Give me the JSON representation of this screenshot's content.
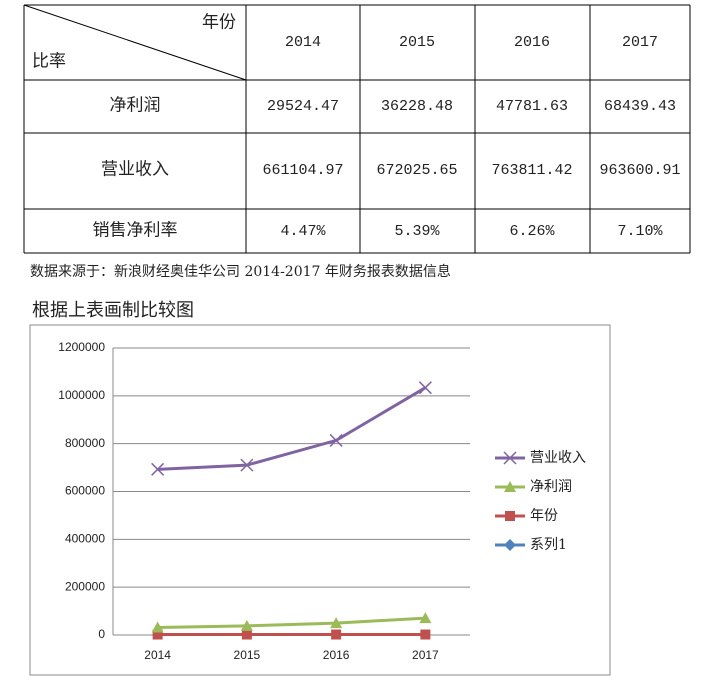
{
  "table": {
    "corner_top": "年份",
    "corner_bottom": "比率",
    "years": [
      "2014",
      "2015",
      "2016",
      "2017"
    ],
    "rows": [
      {
        "label": "净利润",
        "cells": [
          "29524.47",
          "36228.48",
          "47781.63",
          "68439.43"
        ]
      },
      {
        "label": "营业收入",
        "cells": [
          "661104.97",
          "672025.65",
          "763811.42",
          "963600.91"
        ]
      },
      {
        "label": "销售净利率",
        "cells": [
          "4.47%",
          "5.39%",
          "6.26%",
          "7.10%"
        ]
      }
    ]
  },
  "source": "数据来源于：新浪财经奥佳华公司 2014-2017 年财务报表数据信息",
  "chart_heading": "根据上表画制比较图",
  "chart_data": {
    "type": "line",
    "stacked": true,
    "categories": [
      "2014",
      "2015",
      "2016",
      "2017"
    ],
    "series": [
      {
        "name": "营业收入",
        "color": "#8064a2",
        "marker": "x",
        "values": [
          661104.97,
          672025.65,
          763811.42,
          963600.91
        ]
      },
      {
        "name": "净利润",
        "color": "#9bbb59",
        "marker": "triangle",
        "values": [
          29524.47,
          36228.48,
          47781.63,
          68439.43
        ]
      },
      {
        "name": "年份",
        "color": "#c0504d",
        "marker": "square",
        "values": [
          2014,
          2015,
          2016,
          2017
        ]
      },
      {
        "name": "系列1",
        "color": "#4f81bd",
        "marker": "diamond",
        "values": [
          null,
          null,
          null,
          null
        ]
      }
    ],
    "ylim": [
      0,
      1200000
    ],
    "yticks": [
      0,
      200000,
      400000,
      600000,
      800000,
      1000000,
      1200000
    ],
    "grid": true,
    "legend": "right"
  }
}
